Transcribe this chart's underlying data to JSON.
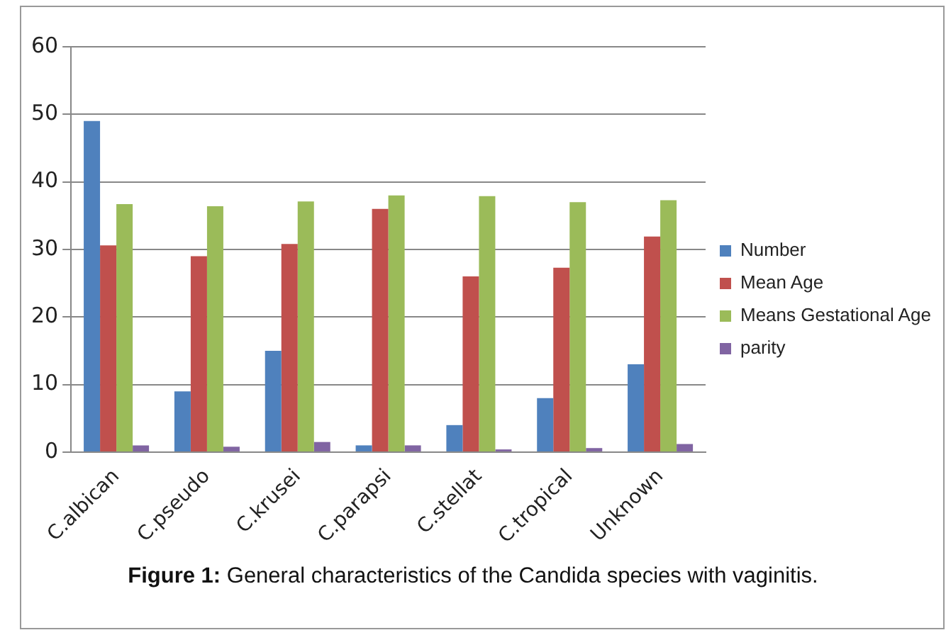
{
  "chart_data": {
    "type": "bar",
    "categories": [
      "C.albican",
      "C.pseudo",
      "C.krusei",
      "C.parapsi",
      "C.stellat",
      "C.tropical",
      "Unknown"
    ],
    "series": [
      {
        "name": "Number",
        "color": "#4f81bd",
        "values": [
          49,
          9,
          15,
          1,
          4,
          8,
          13
        ]
      },
      {
        "name": "Mean Age",
        "color": "#c0504d",
        "values": [
          30.6,
          29,
          30.8,
          36,
          26,
          27.3,
          31.9
        ]
      },
      {
        "name": "Means Gestational Age",
        "color": "#9bbb59",
        "values": [
          36.7,
          36.4,
          37.1,
          38,
          37.9,
          37,
          37.3
        ]
      },
      {
        "name": "parity",
        "color": "#8064a2",
        "values": [
          1,
          0.8,
          1.5,
          1,
          0.4,
          0.6,
          1.2
        ]
      }
    ],
    "ylim": [
      0,
      60
    ],
    "yticks": [
      0,
      10,
      20,
      30,
      40,
      50,
      60
    ],
    "grid": "y",
    "legend": "right",
    "annotations": [
      "Figure 1: General characteristics of the Candida species with vaginitis."
    ]
  }
}
